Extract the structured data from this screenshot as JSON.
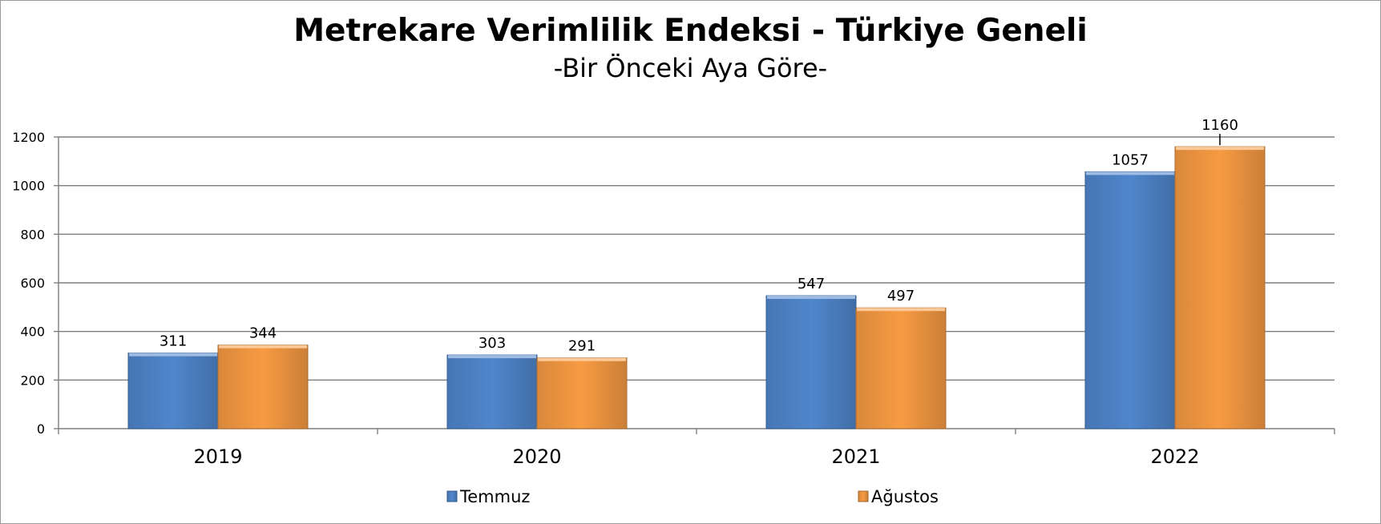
{
  "chart_data": {
    "type": "bar",
    "title": "Metrekare Verimlilik Endeksi - Türkiye Geneli",
    "subtitle": "-Bir Önceki Aya Göre-",
    "categories": [
      "2019",
      "2020",
      "2021",
      "2022"
    ],
    "series": [
      {
        "name": "Temmuz",
        "values": [
          311,
          303,
          547,
          1057
        ],
        "color": "#4f86cc"
      },
      {
        "name": "Ağustos",
        "values": [
          344,
          291,
          497,
          1160
        ],
        "color": "#f79b43"
      }
    ],
    "ylim": [
      0,
      1200
    ],
    "yticks": [
      0,
      200,
      400,
      600,
      800,
      1000,
      1200
    ],
    "grid": true,
    "legend": "bottom",
    "data_labels": true
  }
}
